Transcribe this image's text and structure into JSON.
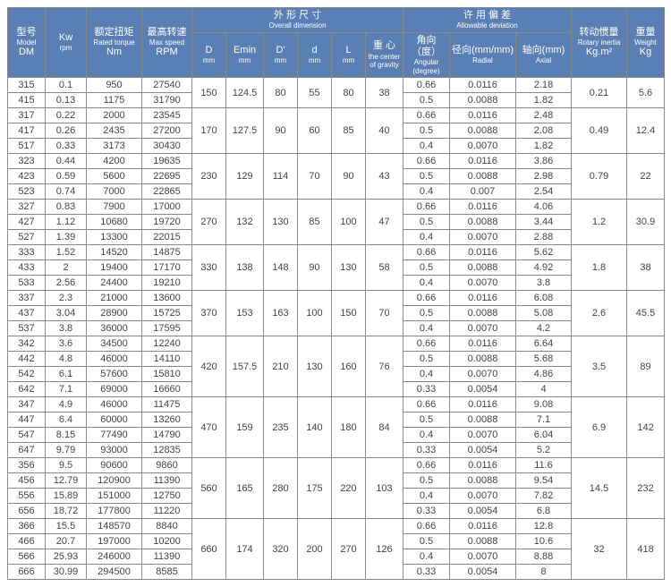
{
  "headers": {
    "model": {
      "cn": "型号",
      "en": "Model",
      "sub": "DM"
    },
    "kw": {
      "cn": "Kw",
      "en": "rpm"
    },
    "torque": {
      "cn": "额定扭矩",
      "en": "Rated torque",
      "sub": "Nm"
    },
    "maxspeed": {
      "cn": "最高转速",
      "en": "Max speed",
      "sub": "RPM"
    },
    "dimension": {
      "cn": "外 形 尺 寸",
      "en": "Overall dimension"
    },
    "D": {
      "t": "D",
      "s": "mm"
    },
    "Emin": {
      "t": "Emin",
      "s": "mm"
    },
    "D1": {
      "t": "D'",
      "s": "mm"
    },
    "d": {
      "t": "d",
      "s": "mm"
    },
    "L": {
      "t": "L",
      "s": "mm"
    },
    "center": {
      "cn": "重 心",
      "en": "the center of gravity"
    },
    "deviation": {
      "cn": "许 用 偏 差",
      "en": "Allowable deviation"
    },
    "ang": {
      "cn": "角向（度）",
      "en": "Angular (degree)"
    },
    "rad": {
      "cn": "径向(mm/mm)",
      "en": "Radial"
    },
    "ax": {
      "cn": "轴向(mm)",
      "en": "Axial"
    },
    "inertia": {
      "cn": "转动惯量",
      "en": "Rotary inertia",
      "sub": "Kg.m²"
    },
    "weight": {
      "cn": "重量",
      "en": "Weight",
      "sub": "Kg"
    }
  },
  "groups": [
    {
      "D": "150",
      "Emin": "124.5",
      "D1": "80",
      "d": "55",
      "L": "80",
      "c": "38",
      "inertia": "0.21",
      "weight": "5.6",
      "rows": [
        [
          "315",
          "0.1",
          "950",
          "27540",
          "0.66",
          "0.0116",
          "2.18"
        ],
        [
          "415",
          "0.13",
          "1175",
          "31790",
          "0.5",
          "0.0088",
          "1.82"
        ]
      ]
    },
    {
      "D": "170",
      "Emin": "127.5",
      "D1": "90",
      "d": "60",
      "L": "85",
      "c": "40",
      "inertia": "0.49",
      "weight": "12.4",
      "rows": [
        [
          "317",
          "0.22",
          "2000",
          "23545",
          "0.66",
          "0.0116",
          "2.48"
        ],
        [
          "417",
          "0.26",
          "2435",
          "27200",
          "0.5",
          "0.0088",
          "2.08"
        ],
        [
          "517",
          "0.33",
          "3173",
          "30430",
          "0.4",
          "0.0070",
          "1.82"
        ]
      ]
    },
    {
      "D": "230",
      "Emin": "129",
      "D1": "114",
      "d": "70",
      "L": "90",
      "c": "43",
      "inertia": "0.79",
      "weight": "22",
      "rows": [
        [
          "323",
          "0.44",
          "4200",
          "19635",
          "0.66",
          "0.0116",
          "3.86"
        ],
        [
          "423",
          "0.59",
          "5600",
          "22695",
          "0.5",
          "0.0088",
          "2.98"
        ],
        [
          "523",
          "0.74",
          "7000",
          "22865",
          "0.4",
          "0.007",
          "2.54"
        ]
      ]
    },
    {
      "D": "270",
      "Emin": "132",
      "D1": "130",
      "d": "85",
      "L": "100",
      "c": "47",
      "inertia": "1.2",
      "weight": "30.9",
      "rows": [
        [
          "327",
          "0.83",
          "7900",
          "17000",
          "0.66",
          "0.0116",
          "4.06"
        ],
        [
          "427",
          "1.12",
          "10680",
          "19720",
          "0.5",
          "0.0088",
          "3.44"
        ],
        [
          "527",
          "1.39",
          "13300",
          "22015",
          "0.4",
          "0.0070",
          "2.88"
        ]
      ]
    },
    {
      "D": "330",
      "Emin": "138",
      "D1": "148",
      "d": "90",
      "L": "130",
      "c": "58",
      "inertia": "1.8",
      "weight": "38",
      "rows": [
        [
          "333",
          "1.52",
          "14520",
          "14875",
          "0.66",
          "0.0116",
          "5.62"
        ],
        [
          "433",
          "2",
          "19400",
          "17170",
          "0.5",
          "0.0088",
          "4.92"
        ],
        [
          "533",
          "2.56",
          "24400",
          "19210",
          "0.4",
          "0.0070",
          "3.8"
        ]
      ]
    },
    {
      "D": "370",
      "Emin": "153",
      "D1": "163",
      "d": "100",
      "L": "150",
      "c": "70",
      "inertia": "2.6",
      "weight": "45.5",
      "rows": [
        [
          "337",
          "2.3",
          "21000",
          "13600",
          "0.66",
          "0.0116",
          "6.08"
        ],
        [
          "437",
          "3.04",
          "28900",
          "15725",
          "0.5",
          "0.0088",
          "5.08"
        ],
        [
          "537",
          "3.8",
          "36000",
          "17595",
          "0.4",
          "0.0070",
          "4.2"
        ]
      ]
    },
    {
      "D": "420",
      "Emin": "157.5",
      "D1": "210",
      "d": "130",
      "L": "160",
      "c": "76",
      "inertia": "3.5",
      "weight": "89",
      "rows": [
        [
          "342",
          "3.6",
          "34500",
          "12240",
          "0.66",
          "0.0116",
          "6.64"
        ],
        [
          "442",
          "4.8",
          "46000",
          "14110",
          "0.5",
          "0.0088",
          "5.68"
        ],
        [
          "542",
          "6.1",
          "57600",
          "15810",
          "0.4",
          "0.0070",
          "4.86"
        ],
        [
          "642",
          "7.1",
          "69000",
          "16660",
          "0.33",
          "0.0054",
          "4"
        ]
      ]
    },
    {
      "D": "470",
      "Emin": "159",
      "D1": "235",
      "d": "140",
      "L": "180",
      "c": "84",
      "inertia": "6.9",
      "weight": "142",
      "rows": [
        [
          "347",
          "4.9",
          "46000",
          "11475",
          "0.66",
          "0.0116",
          "9.08"
        ],
        [
          "447",
          "6.4",
          "60000",
          "13260",
          "0.5",
          "0.0088",
          "7.1"
        ],
        [
          "547",
          "8.15",
          "77490",
          "14790",
          "0.4",
          "0.0070",
          "6.04"
        ],
        [
          "647",
          "9.79",
          "93000",
          "12835",
          "0.33",
          "0.0054",
          "5.2"
        ]
      ]
    },
    {
      "D": "560",
      "Emin": "165",
      "D1": "280",
      "d": "175",
      "L": "220",
      "c": "103",
      "inertia": "14.5",
      "weight": "232",
      "rows": [
        [
          "356",
          "9.5",
          "90600",
          "9860",
          "0.66",
          "0.0116",
          "11.6"
        ],
        [
          "456",
          "12.79",
          "120900",
          "11390",
          "0.5",
          "0.0088",
          "9.54"
        ],
        [
          "556",
          "15.89",
          "151000",
          "12750",
          "0.4",
          "0.0070",
          "7.82"
        ],
        [
          "656",
          "18.72",
          "177800",
          "11220",
          "0.33",
          "0.0054",
          "6.8"
        ]
      ]
    },
    {
      "D": "660",
      "Emin": "174",
      "D1": "320",
      "d": "200",
      "L": "270",
      "c": "126",
      "inertia": "32",
      "weight": "418",
      "rows": [
        [
          "366",
          "15.5",
          "148570",
          "8840",
          "0.66",
          "0.0116",
          "12.8"
        ],
        [
          "466",
          "20.7",
          "197000",
          "10200",
          "0.5",
          "0.0088",
          "10.6"
        ],
        [
          "566",
          "25.93",
          "246000",
          "11390",
          "0.4",
          "0.0070",
          "8.88"
        ],
        [
          "666",
          "30.99",
          "294500",
          "8585",
          "0.33",
          "0.0054",
          "8"
        ]
      ]
    }
  ]
}
